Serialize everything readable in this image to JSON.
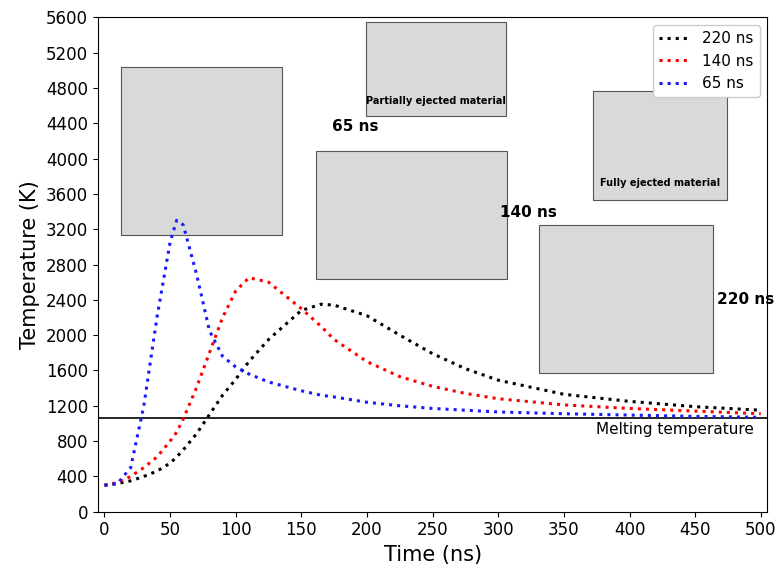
{
  "chart_data": {
    "type": "line",
    "x_label": "Time (ns)",
    "y_label": "Temperature (K)",
    "x": [
      0,
      10,
      20,
      30,
      40,
      50,
      55,
      60,
      70,
      80,
      90,
      100,
      110,
      125,
      150,
      165,
      175,
      200,
      225,
      250,
      275,
      300,
      350,
      400,
      450,
      500
    ],
    "series": [
      {
        "name": "220 ns",
        "color": "#000000",
        "line_style": "dotted",
        "values": [
          300,
          320,
          350,
          400,
          460,
          550,
          620,
          700,
          880,
          1100,
          1320,
          1500,
          1700,
          1950,
          2280,
          2350,
          2340,
          2220,
          2000,
          1790,
          1620,
          1490,
          1330,
          1250,
          1190,
          1150
        ]
      },
      {
        "name": "140 ns",
        "color": "#ff0000",
        "line_style": "dotted",
        "values": [
          300,
          330,
          400,
          500,
          620,
          800,
          900,
          1050,
          1400,
          1800,
          2200,
          2500,
          2650,
          2600,
          2300,
          2100,
          1950,
          1700,
          1530,
          1420,
          1340,
          1280,
          1210,
          1170,
          1140,
          1110
        ]
      },
      {
        "name": "65 ns",
        "color": "#1a1aff",
        "line_style": "dotted",
        "values": [
          300,
          320,
          500,
          1200,
          2200,
          3050,
          3300,
          3250,
          2700,
          2050,
          1760,
          1640,
          1560,
          1470,
          1370,
          1320,
          1300,
          1240,
          1200,
          1170,
          1150,
          1130,
          1110,
          1095,
          1080,
          1070
        ]
      }
    ],
    "reference_line": {
      "value": 1060,
      "label": "Melting temperature",
      "color": "#000000"
    },
    "annotations": [
      "65 ns",
      "140 ns",
      "220 ns",
      "Partially ejected material",
      "Fully ejected material"
    ],
    "xlim": [
      -5,
      505
    ],
    "ylim": [
      0,
      5600
    ],
    "xticks": [
      0,
      50,
      100,
      150,
      200,
      250,
      300,
      350,
      400,
      450,
      500
    ],
    "yticks": [
      0,
      400,
      800,
      1200,
      1600,
      2000,
      2400,
      2800,
      3200,
      3600,
      4000,
      4400,
      4800,
      5200,
      5600
    ],
    "legend": "upper right",
    "grid": false
  }
}
